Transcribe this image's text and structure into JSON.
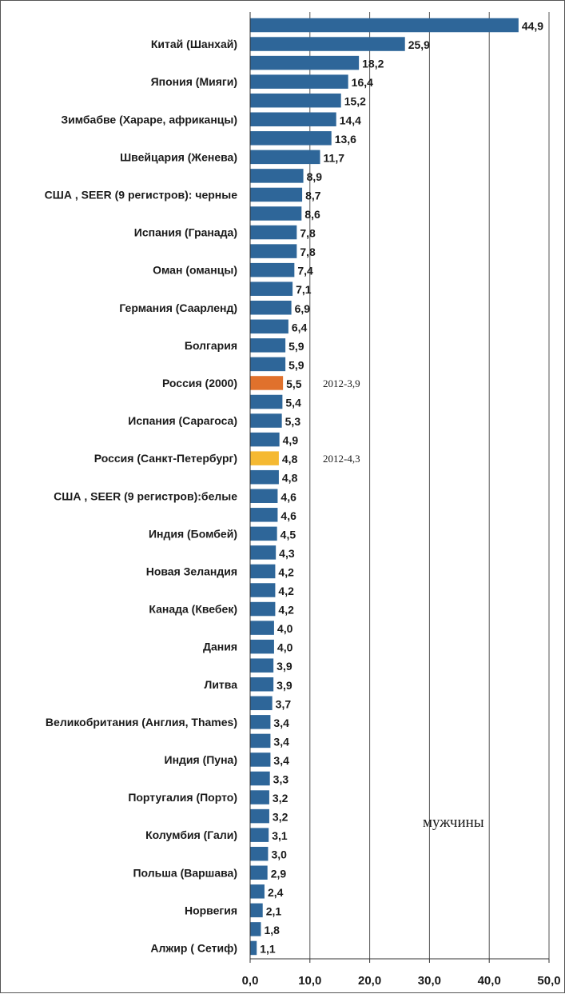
{
  "chart_data": {
    "type": "bar",
    "orientation": "horizontal",
    "series_label": "мужчины",
    "xlim": [
      0,
      50
    ],
    "ticks": [
      "0,0",
      "10,0",
      "20,0",
      "30,0",
      "40,0",
      "50,0"
    ],
    "tick_values": [
      0,
      10,
      20,
      30,
      40,
      50
    ],
    "grid": true,
    "default_color": "#2e6699",
    "bars": [
      {
        "label": "",
        "value": 44.9,
        "display": "44,9"
      },
      {
        "label": "Китай (Шанхай)",
        "value": 25.9,
        "display": "25,9"
      },
      {
        "label": "",
        "value": 18.2,
        "display": "18,2"
      },
      {
        "label": "Япония (Мияги)",
        "value": 16.4,
        "display": "16,4"
      },
      {
        "label": "",
        "value": 15.2,
        "display": "15,2"
      },
      {
        "label": "Зимбабве (Хараре, африканцы)",
        "value": 14.4,
        "display": "14,4"
      },
      {
        "label": "",
        "value": 13.6,
        "display": "13,6"
      },
      {
        "label": "Швейцария (Женева)",
        "value": 11.7,
        "display": "11,7"
      },
      {
        "label": "",
        "value": 8.9,
        "display": "8,9"
      },
      {
        "label": "США , SEER (9 регистров): черные",
        "value": 8.7,
        "display": "8,7"
      },
      {
        "label": "",
        "value": 8.6,
        "display": "8,6"
      },
      {
        "label": "Испания (Гранада)",
        "value": 7.8,
        "display": "7,8"
      },
      {
        "label": "",
        "value": 7.8,
        "display": "7,8"
      },
      {
        "label": "Оман (оманцы)",
        "value": 7.4,
        "display": "7,4"
      },
      {
        "label": "",
        "value": 7.1,
        "display": "7,1"
      },
      {
        "label": "Германия (Саарленд)",
        "value": 6.9,
        "display": "6,9"
      },
      {
        "label": "",
        "value": 6.4,
        "display": "6,4"
      },
      {
        "label": "Болгария",
        "value": 5.9,
        "display": "5,9"
      },
      {
        "label": "",
        "value": 5.9,
        "display": "5,9"
      },
      {
        "label": "Россия (2000)",
        "value": 5.5,
        "display": "5,5",
        "color": "#e0712c",
        "note": "2012-3,9"
      },
      {
        "label": "",
        "value": 5.4,
        "display": "5,4"
      },
      {
        "label": "Испания (Сарагоса)",
        "value": 5.3,
        "display": "5,3"
      },
      {
        "label": "",
        "value": 4.9,
        "display": "4,9"
      },
      {
        "label": "Россия (Санкт-Петербург)",
        "value": 4.8,
        "display": "4,8",
        "color": "#f5b932",
        "note": "2012-4,3"
      },
      {
        "label": "",
        "value": 4.8,
        "display": "4,8"
      },
      {
        "label": "США , SEER (9 регистров):белые",
        "value": 4.6,
        "display": "4,6"
      },
      {
        "label": "",
        "value": 4.6,
        "display": "4,6"
      },
      {
        "label": "Индия (Бомбей)",
        "value": 4.5,
        "display": "4,5"
      },
      {
        "label": "",
        "value": 4.3,
        "display": "4,3"
      },
      {
        "label": "Новая Зеландия",
        "value": 4.2,
        "display": "4,2"
      },
      {
        "label": "",
        "value": 4.2,
        "display": "4,2"
      },
      {
        "label": "Канада (Квебек)",
        "value": 4.2,
        "display": "4,2"
      },
      {
        "label": "",
        "value": 4.0,
        "display": "4,0"
      },
      {
        "label": "Дания",
        "value": 4.0,
        "display": "4,0"
      },
      {
        "label": "",
        "value": 3.9,
        "display": "3,9"
      },
      {
        "label": "Литва",
        "value": 3.9,
        "display": "3,9"
      },
      {
        "label": "",
        "value": 3.7,
        "display": "3,7"
      },
      {
        "label": "Великобритания (Англия, Thames)",
        "value": 3.4,
        "display": "3,4"
      },
      {
        "label": "",
        "value": 3.4,
        "display": "3,4"
      },
      {
        "label": "Индия (Пуна)",
        "value": 3.4,
        "display": "3,4"
      },
      {
        "label": "",
        "value": 3.3,
        "display": "3,3"
      },
      {
        "label": "Португалия (Порто)",
        "value": 3.2,
        "display": "3,2"
      },
      {
        "label": "",
        "value": 3.2,
        "display": "3,2"
      },
      {
        "label": "Колумбия (Гали)",
        "value": 3.1,
        "display": "3,1"
      },
      {
        "label": "",
        "value": 3.0,
        "display": "3,0"
      },
      {
        "label": "Польша (Варшава)",
        "value": 2.9,
        "display": "2,9"
      },
      {
        "label": "",
        "value": 2.4,
        "display": "2,4"
      },
      {
        "label": "Норвегия",
        "value": 2.1,
        "display": "2,1"
      },
      {
        "label": "",
        "value": 1.8,
        "display": "1,8"
      },
      {
        "label": "Алжир ( Сетиф)",
        "value": 1.1,
        "display": "1,1"
      }
    ]
  }
}
